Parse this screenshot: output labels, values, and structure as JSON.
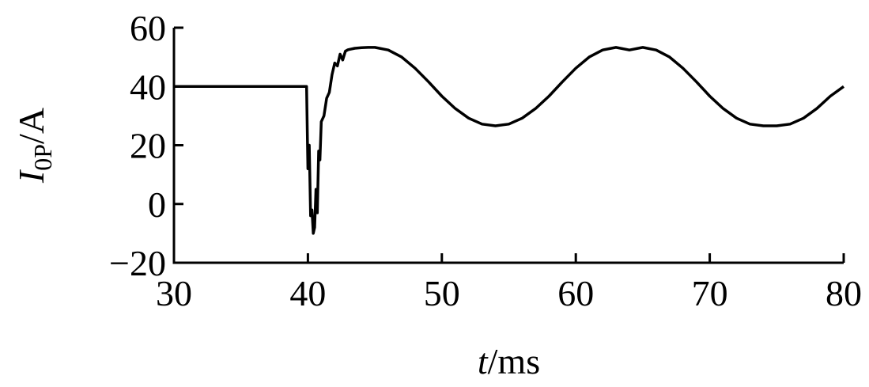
{
  "chart_data": {
    "type": "line",
    "title": "",
    "xlabel_italic": "t",
    "xlabel_rest": "/ms",
    "ylabel_italic": "I",
    "ylabel_sub": "0P",
    "ylabel_rest": "/A",
    "xlim": [
      30,
      80
    ],
    "ylim": [
      -20,
      60
    ],
    "x_ticks": [
      30,
      40,
      50,
      60,
      70,
      80
    ],
    "y_ticks": [
      -20,
      0,
      20,
      40,
      60
    ],
    "x_tick_labels": [
      "30",
      "40",
      "50",
      "60",
      "70",
      "80"
    ],
    "y_tick_labels": [
      "−20",
      "0",
      "20",
      "40",
      "60"
    ],
    "grid": false,
    "series": [
      {
        "x": [
          30,
          39.9,
          40.0,
          40.1,
          40.2,
          40.3,
          40.4,
          40.5,
          40.6,
          40.7,
          40.8,
          40.9,
          41.0,
          41.2,
          41.4,
          41.6,
          41.8,
          42.0,
          42.2,
          42.4,
          42.6,
          42.8,
          43.0,
          43.5,
          44.0,
          44.5,
          45.0,
          46,
          47,
          48,
          49,
          50,
          51,
          52,
          53,
          54,
          55,
          56,
          57,
          58,
          59,
          60,
          61,
          62,
          63,
          64,
          65,
          66,
          67,
          68,
          69,
          70,
          71,
          72,
          73,
          74,
          75,
          76,
          77,
          78,
          79,
          80
        ],
        "y": [
          40,
          40,
          12,
          20,
          -4,
          -2,
          -10,
          -8,
          5,
          -3,
          18,
          15,
          28,
          30,
          36,
          38,
          44,
          48,
          47,
          51,
          49,
          52,
          52.5,
          53,
          53.2,
          53.3,
          53.3,
          52.4,
          50,
          46.2,
          41.6,
          36.7,
          32.5,
          29.2,
          27.2,
          26.6,
          27.2,
          29.2,
          32.5,
          36.7,
          41.6,
          46.2,
          50,
          52.4,
          53.3,
          52.4,
          53.3,
          52.4,
          50,
          46.2,
          41.6,
          36.7,
          32.5,
          29.2,
          27.2,
          26.6,
          26.6,
          27.2,
          29.2,
          32.5,
          36.7,
          40
        ]
      }
    ]
  }
}
